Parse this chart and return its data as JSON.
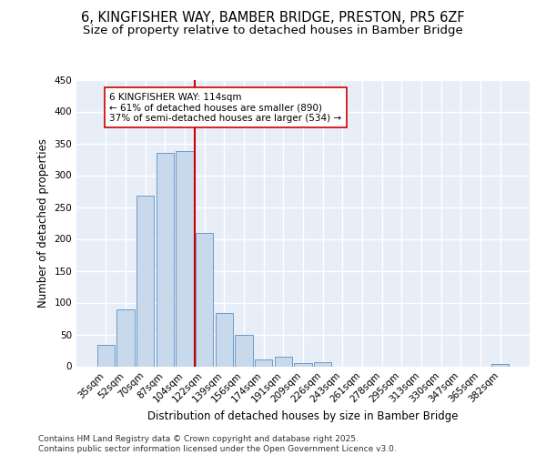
{
  "title_line1": "6, KINGFISHER WAY, BAMBER BRIDGE, PRESTON, PR5 6ZF",
  "title_line2": "Size of property relative to detached houses in Bamber Bridge",
  "xlabel": "Distribution of detached houses by size in Bamber Bridge",
  "ylabel": "Number of detached properties",
  "categories": [
    "35sqm",
    "52sqm",
    "70sqm",
    "87sqm",
    "104sqm",
    "122sqm",
    "139sqm",
    "156sqm",
    "174sqm",
    "191sqm",
    "209sqm",
    "226sqm",
    "243sqm",
    "261sqm",
    "278sqm",
    "295sqm",
    "313sqm",
    "330sqm",
    "347sqm",
    "365sqm",
    "382sqm"
  ],
  "values": [
    33,
    90,
    268,
    335,
    338,
    210,
    83,
    50,
    11,
    15,
    5,
    7,
    0,
    0,
    0,
    0,
    0,
    0,
    0,
    0,
    3
  ],
  "bar_color": "#c9d9ec",
  "bar_edge_color": "#5a8fc4",
  "vline_color": "#cc0000",
  "vline_xindex": 5,
  "annotation_text": "6 KINGFISHER WAY: 114sqm\n← 61% of detached houses are smaller (890)\n37% of semi-detached houses are larger (534) →",
  "annotation_box_color": "#ffffff",
  "annotation_box_edge": "#cc0000",
  "ylim": [
    0,
    450
  ],
  "yticks": [
    0,
    50,
    100,
    150,
    200,
    250,
    300,
    350,
    400,
    450
  ],
  "background_color": "#e8eef8",
  "grid_color": "#ffffff",
  "footer_text": "Contains HM Land Registry data © Crown copyright and database right 2025.\nContains public sector information licensed under the Open Government Licence v3.0.",
  "title_fontsize": 10.5,
  "subtitle_fontsize": 9.5,
  "axis_label_fontsize": 8.5,
  "tick_fontsize": 7.5,
  "annotation_fontsize": 7.5,
  "footer_fontsize": 6.5
}
